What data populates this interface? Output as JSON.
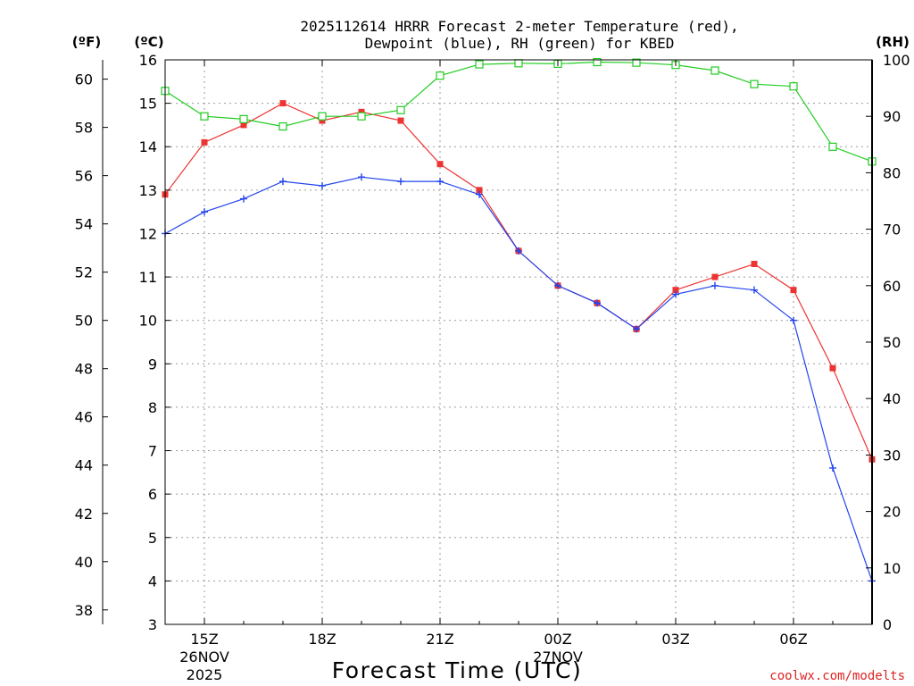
{
  "chart_data": {
    "type": "line",
    "title_line1": "2025112614 HRRR Forecast 2-meter Temperature (red),",
    "title_line2": "Dewpoint (blue), RH (green) for KBED",
    "xlabel": "Forecast Time (UTC)",
    "watermark": "coolwx.com/modelts",
    "units": {
      "fahrenheit": "(ºF)",
      "celsius": "(ºC)",
      "rh": "(RH)"
    },
    "x_range_hours": [
      14,
      32
    ],
    "x_ticks": [
      {
        "hour": 15,
        "label": "15Z",
        "date1": "26NOV",
        "date2": "2025"
      },
      {
        "hour": 18,
        "label": "18Z"
      },
      {
        "hour": 21,
        "label": "21Z"
      },
      {
        "hour": 24,
        "label": "00Z",
        "date1": "27NOV"
      },
      {
        "hour": 27,
        "label": "03Z"
      },
      {
        "hour": 30,
        "label": "06Z"
      }
    ],
    "celsius_range": [
      3,
      16
    ],
    "celsius_ticks": [
      "3",
      "4",
      "5",
      "6",
      "7",
      "8",
      "9",
      "10",
      "11",
      "12",
      "13",
      "14",
      "15",
      "16"
    ],
    "fahrenheit_ticks": [
      "38",
      "40",
      "42",
      "44",
      "46",
      "48",
      "50",
      "52",
      "54",
      "56",
      "58",
      "60"
    ],
    "rh_range": [
      0,
      100
    ],
    "rh_ticks": [
      "0",
      "10",
      "20",
      "30",
      "40",
      "50",
      "60",
      "70",
      "80",
      "90",
      "100"
    ],
    "hours": [
      14,
      15,
      16,
      17,
      18,
      19,
      20,
      21,
      22,
      23,
      24,
      25,
      26,
      27,
      28,
      29,
      30,
      31,
      32
    ],
    "series": [
      {
        "name": "Temperature",
        "axis": "celsius",
        "color": "#ee3333",
        "marker": "filled-square",
        "values": [
          12.9,
          14.1,
          14.5,
          15.0,
          14.6,
          14.8,
          14.6,
          13.6,
          13.0,
          11.6,
          10.8,
          10.4,
          9.8,
          10.7,
          11.0,
          11.3,
          10.7,
          8.9,
          6.8
        ]
      },
      {
        "name": "Dewpoint",
        "axis": "celsius",
        "color": "#2244ee",
        "marker": "plus",
        "values": [
          12.0,
          12.5,
          12.8,
          13.2,
          13.1,
          13.3,
          13.2,
          13.2,
          12.9,
          11.6,
          10.8,
          10.4,
          9.8,
          10.6,
          10.8,
          10.7,
          10.0,
          6.6,
          4.0
        ]
      },
      {
        "name": "RH",
        "axis": "rh",
        "color": "#22cc22",
        "marker": "open-square",
        "values": [
          94.5,
          90,
          89.5,
          88.2,
          90,
          90,
          91.1,
          97.2,
          99.2,
          99.4,
          99.3,
          99.6,
          99.5,
          99.1,
          98.1,
          95.7,
          95.3,
          84.6,
          82
        ]
      }
    ]
  }
}
